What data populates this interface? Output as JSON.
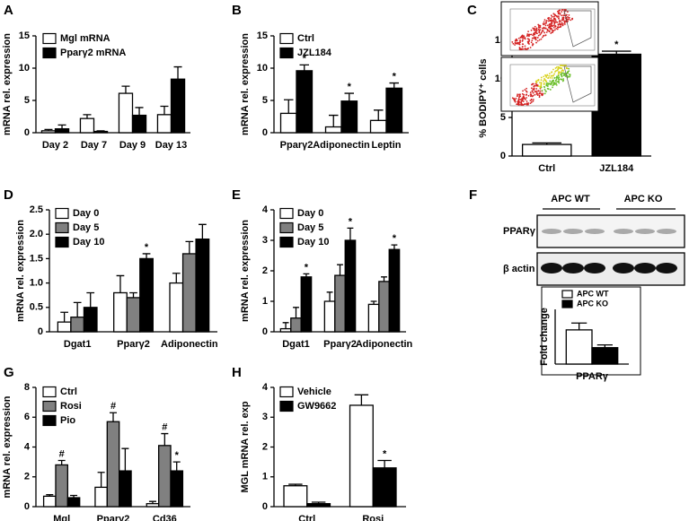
{
  "chart_data": [
    {
      "panel": "A",
      "type": "bar",
      "ylabel": "mRNA rel. expression",
      "categories": [
        "Day 2",
        "Day 7",
        "Day 9",
        "Day 13"
      ],
      "series": [
        {
          "name": "Mgl mRNA",
          "color": "#ffffff",
          "values": [
            0.3,
            2.2,
            6.1,
            2.8
          ],
          "errors": [
            0.2,
            0.6,
            1.1,
            1.3
          ]
        },
        {
          "name": "Pparγ2 mRNA",
          "color": "#000000",
          "values": [
            0.6,
            0.2,
            2.7,
            8.3
          ],
          "errors": [
            0.6,
            0.1,
            1.2,
            1.9
          ]
        }
      ],
      "ylim": [
        0,
        15
      ],
      "yticks": [
        0,
        5,
        10,
        15
      ]
    },
    {
      "panel": "B",
      "type": "bar",
      "ylabel": "mRNA rel. expression",
      "categories": [
        "Pparγ2",
        "Adiponectin",
        "Leptin"
      ],
      "series": [
        {
          "name": "Ctrl",
          "color": "#ffffff",
          "values": [
            3.0,
            0.9,
            1.9
          ],
          "errors": [
            2.1,
            1.8,
            1.6
          ]
        },
        {
          "name": "JZL184",
          "color": "#000000",
          "values": [
            9.6,
            4.9,
            6.9
          ],
          "errors": [
            0.9,
            1.2,
            0.8
          ],
          "markers": [
            "*",
            "*",
            "*"
          ]
        }
      ],
      "ylim": [
        0,
        15
      ],
      "yticks": [
        0,
        5,
        10,
        15
      ]
    },
    {
      "panel": "C",
      "type": "bar",
      "ylabel": "% BODIPY⁺ cells",
      "categories": [
        "Ctrl",
        "JZL184"
      ],
      "values": [
        1.5,
        13.2
      ],
      "errors": [
        0.2,
        0.4
      ],
      "colors": [
        "#ffffff",
        "#000000"
      ],
      "markers": [
        null,
        "*"
      ],
      "ylim": [
        0,
        15
      ],
      "yticks": [
        0,
        5,
        10,
        15
      ]
    },
    {
      "panel": "D",
      "type": "bar",
      "ylabel": "mRNA rel. expression",
      "categories": [
        "Dgat1",
        "Pparγ2",
        "Adiponectin"
      ],
      "series": [
        {
          "name": "Day 0",
          "color": "#ffffff",
          "values": [
            0.2,
            0.8,
            1.0
          ],
          "errors": [
            0.2,
            0.35,
            0.2
          ]
        },
        {
          "name": "Day 5",
          "color": "#808080",
          "values": [
            0.3,
            0.7,
            1.6
          ],
          "errors": [
            0.3,
            0.1,
            0.25
          ]
        },
        {
          "name": "Day 10",
          "color": "#000000",
          "values": [
            0.5,
            1.5,
            1.9
          ],
          "errors": [
            0.3,
            0.1,
            0.3
          ],
          "markers": [
            null,
            "*",
            null
          ]
        }
      ],
      "ylim": [
        0,
        2.5
      ],
      "yticks": [
        0,
        0.5,
        {
          "value": 1,
          "label": "1.0"
        },
        1.5,
        {
          "value": 2,
          "label": "2.0"
        },
        2.5
      ]
    },
    {
      "panel": "E",
      "type": "bar",
      "ylabel": "mRNA rel. expression",
      "categories": [
        "Dgat1",
        "Pparγ2",
        "Adiponectin"
      ],
      "series": [
        {
          "name": "Day 0",
          "color": "#ffffff",
          "values": [
            0.1,
            1.0,
            0.9
          ],
          "errors": [
            0.2,
            0.3,
            0.1
          ]
        },
        {
          "name": "Day 5",
          "color": "#808080",
          "values": [
            0.45,
            1.85,
            1.65
          ],
          "errors": [
            0.35,
            0.35,
            0.15
          ]
        },
        {
          "name": "Day 10",
          "color": "#000000",
          "values": [
            1.8,
            3.0,
            2.7
          ],
          "errors": [
            0.1,
            0.4,
            0.15
          ],
          "markers": [
            "*",
            "*",
            "*"
          ]
        }
      ],
      "ylim": [
        0,
        4
      ],
      "yticks": [
        0,
        1,
        2,
        3,
        4
      ]
    },
    {
      "panel": "F",
      "type": "bar",
      "ylabel": "Fold change",
      "categories": [
        "PPARγ"
      ],
      "blot": {
        "groups": [
          "APC WT",
          "APC KO"
        ],
        "rows": [
          "PPARγ",
          "β actin"
        ]
      },
      "series": [
        {
          "name": "APC WT",
          "color": "#ffffff",
          "values": [
            2.5
          ],
          "errors": [
            0.5
          ]
        },
        {
          "name": "APC KO",
          "color": "#000000",
          "values": [
            1.2
          ],
          "errors": [
            0.2
          ]
        }
      ],
      "ylim": [
        0,
        4
      ],
      "yticks": []
    },
    {
      "panel": "G",
      "type": "bar",
      "ylabel": "mRNA rel. expression",
      "categories": [
        "Mgl",
        "Pparγ2",
        "Cd36"
      ],
      "series": [
        {
          "name": "Ctrl",
          "color": "#ffffff",
          "values": [
            0.7,
            1.3,
            0.2
          ],
          "errors": [
            0.1,
            1.0,
            0.15
          ]
        },
        {
          "name": "Rosi",
          "color": "#808080",
          "values": [
            2.8,
            5.7,
            4.1
          ],
          "errors": [
            0.3,
            0.6,
            0.8
          ],
          "markers": [
            "#",
            "#",
            "#"
          ]
        },
        {
          "name": "Pio",
          "color": "#000000",
          "values": [
            0.6,
            2.4,
            2.4
          ],
          "errors": [
            0.15,
            1.5,
            0.6
          ],
          "markers": [
            null,
            null,
            "*"
          ]
        }
      ],
      "ylim": [
        0,
        8
      ],
      "yticks": [
        0,
        2,
        4,
        6,
        8
      ]
    },
    {
      "panel": "H",
      "type": "bar",
      "ylabel": "MGL mRNA rel. exp",
      "categories": [
        "Ctrl",
        "Rosi"
      ],
      "series": [
        {
          "name": "Vehicle",
          "color": "#ffffff",
          "values": [
            0.7,
            3.4
          ],
          "errors": [
            0.05,
            0.35
          ]
        },
        {
          "name": "GW9662",
          "color": "#000000",
          "values": [
            0.1,
            1.3
          ],
          "errors": [
            0.05,
            0.25
          ],
          "markers": [
            null,
            "*"
          ]
        }
      ],
      "ylim": [
        0,
        4
      ],
      "yticks": [
        0,
        1,
        2,
        3,
        4
      ]
    }
  ]
}
